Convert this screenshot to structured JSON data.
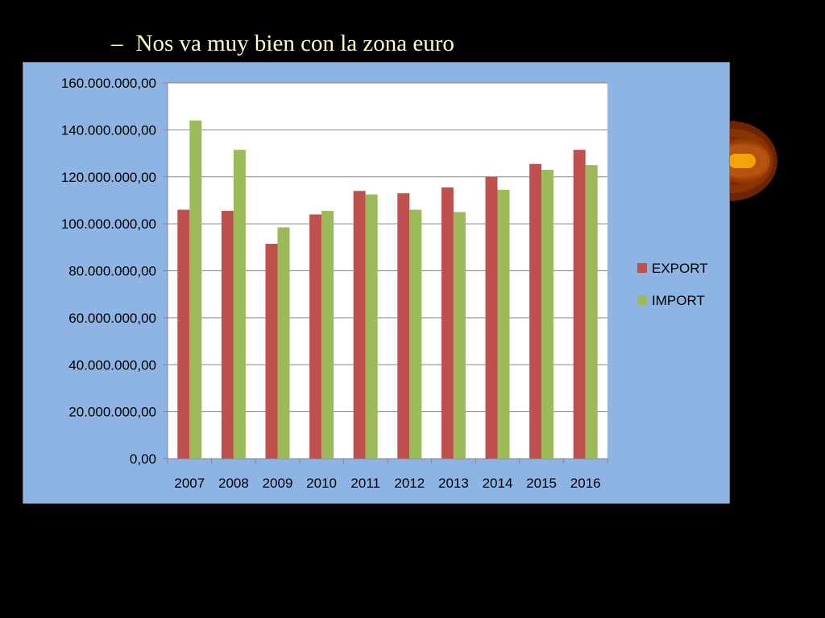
{
  "slide": {
    "bullet_dash": "–",
    "bullet_text": "Nos va muy bien con la zona euro"
  },
  "colors": {
    "slide_background": "#000000",
    "chart_background": "#8eb4e3",
    "plot_background": "#ffffff",
    "export": "#c0504d",
    "import": "#9bbb59",
    "text": "#ffffcc"
  },
  "chart_data": {
    "type": "bar",
    "categories": [
      "2007",
      "2008",
      "2009",
      "2010",
      "2011",
      "2012",
      "2013",
      "2014",
      "2015",
      "2016"
    ],
    "series": [
      {
        "name": "EXPORT",
        "values": [
          106000000,
          105500000,
          91500000,
          104000000,
          114000000,
          113000000,
          115500000,
          120000000,
          125500000,
          131500000
        ]
      },
      {
        "name": "IMPORT",
        "values": [
          144000000,
          131500000,
          98500000,
          105500000,
          112500000,
          106000000,
          105000000,
          114500000,
          123000000,
          125000000
        ]
      }
    ],
    "y_ticks": [
      "0,00",
      "20.000.000,00",
      "40.000.000,00",
      "60.000.000,00",
      "80.000.000,00",
      "100.000.000,00",
      "120.000.000,00",
      "140.000.000,00",
      "160.000.000,00"
    ],
    "ylim": [
      0,
      160000000
    ],
    "grid": true,
    "legend_position": "right"
  }
}
